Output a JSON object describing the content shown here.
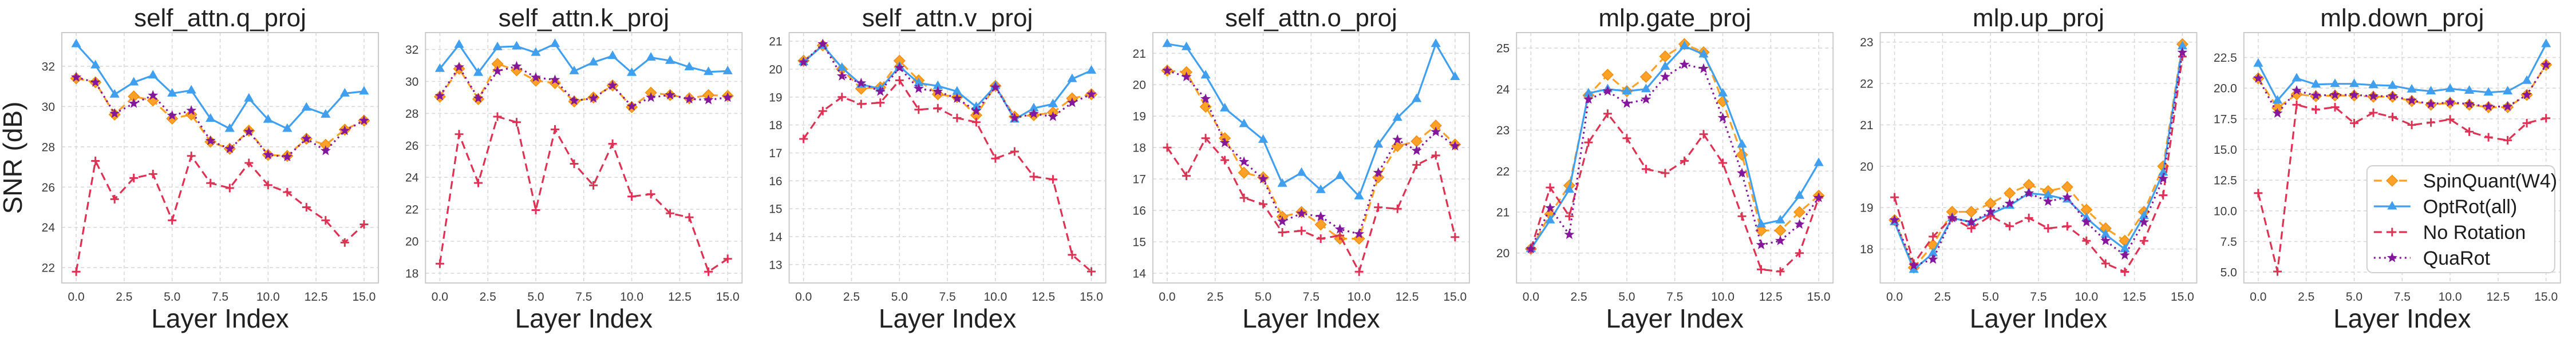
{
  "figure": {
    "ylabel": "SNR (dB)",
    "xlabel": "Layer Index",
    "x": [
      0,
      1,
      2,
      3,
      4,
      5,
      6,
      7,
      8,
      9,
      10,
      11,
      12,
      13,
      14,
      15
    ],
    "xlim": [
      -0.75,
      15.75
    ],
    "xticks": [
      0,
      2.5,
      5,
      7.5,
      10,
      12.5,
      15
    ],
    "xtick_labels": [
      "0.0",
      "2.5",
      "5.0",
      "7.5",
      "10.0",
      "12.5",
      "15.0"
    ],
    "grid": "dashed-both-axes",
    "legend_position": "lower-right-of-last-chart"
  },
  "series_meta": [
    {
      "name": "SpinQuant(W4)",
      "color": "#FFA126",
      "edge_color": "#EE8F0E",
      "line_style": "dashed",
      "marker": "diamond"
    },
    {
      "name": "OptRot(all)",
      "color": "#419FF0",
      "edge_color": "#2B8CE0",
      "line_style": "solid",
      "marker": "triangle-up"
    },
    {
      "name": "No Rotation",
      "color": "#DC3354",
      "edge_color": "#DC3354",
      "line_style": "dashed",
      "marker": "plus"
    },
    {
      "name": "QuaRot",
      "color": "#84189B",
      "edge_color": "#6E1184",
      "line_style": "dotted",
      "marker": "star"
    }
  ],
  "chart_data": [
    {
      "type": "line",
      "title": "self_attn.q_proj",
      "show_ylabel": true,
      "show_legend": false,
      "ylim": [
        21.24,
        33.67
      ],
      "yticks": [
        22,
        24,
        26,
        28,
        30,
        32
      ],
      "ytick_labels": [
        "22",
        "24",
        "26",
        "28",
        "30",
        "32"
      ],
      "series": [
        {
          "name": "SpinQuant(W4)",
          "values": [
            31.4,
            31.2,
            29.6,
            30.5,
            30.3,
            29.4,
            29.6,
            28.25,
            27.9,
            28.8,
            27.6,
            27.55,
            28.4,
            28.1,
            28.85,
            29.3
          ]
        },
        {
          "name": "OptRot(all)",
          "values": [
            33.1,
            32.05,
            30.6,
            31.2,
            31.55,
            30.65,
            30.8,
            29.4,
            28.9,
            30.4,
            29.35,
            28.9,
            29.95,
            29.6,
            30.65,
            30.75
          ]
        },
        {
          "name": "No Rotation",
          "values": [
            21.8,
            27.3,
            25.4,
            26.45,
            26.65,
            24.35,
            27.55,
            26.2,
            25.95,
            27.2,
            26.1,
            25.75,
            25.0,
            24.35,
            23.25,
            24.15
          ]
        },
        {
          "name": "QuaRot",
          "values": [
            31.45,
            31.2,
            29.65,
            30.15,
            30.55,
            29.55,
            29.8,
            28.3,
            27.9,
            28.75,
            27.6,
            27.5,
            28.4,
            27.8,
            28.8,
            29.3
          ]
        }
      ]
    },
    {
      "type": "line",
      "title": "self_attn.k_proj",
      "show_ylabel": false,
      "show_legend": false,
      "ylim": [
        17.39,
        33.06
      ],
      "yticks": [
        18,
        20,
        22,
        24,
        26,
        28,
        30,
        32
      ],
      "ytick_labels": [
        "18",
        "20",
        "22",
        "24",
        "26",
        "28",
        "30",
        "32"
      ],
      "series": [
        {
          "name": "SpinQuant(W4)",
          "values": [
            29.05,
            30.8,
            28.9,
            31.1,
            30.7,
            30.05,
            29.9,
            28.75,
            29.0,
            29.75,
            28.4,
            29.3,
            29.15,
            28.95,
            29.15,
            29.1
          ]
        },
        {
          "name": "OptRot(all)",
          "values": [
            30.8,
            32.3,
            30.55,
            32.15,
            32.2,
            31.8,
            32.35,
            30.65,
            31.2,
            31.6,
            30.55,
            31.5,
            31.3,
            30.9,
            30.6,
            30.65
          ]
        },
        {
          "name": "No Rotation",
          "values": [
            18.6,
            26.7,
            23.65,
            27.8,
            27.45,
            21.95,
            27.0,
            24.85,
            23.5,
            26.1,
            22.8,
            22.95,
            21.75,
            21.5,
            18.1,
            18.9
          ]
        },
        {
          "name": "QuaRot",
          "values": [
            29.1,
            30.9,
            28.95,
            30.65,
            30.95,
            30.25,
            30.1,
            28.8,
            28.95,
            29.75,
            28.45,
            29.0,
            29.15,
            28.9,
            28.85,
            29.0
          ]
        }
      ]
    },
    {
      "type": "line",
      "title": "self_attn.v_proj",
      "show_ylabel": false,
      "show_legend": false,
      "ylim": [
        12.34,
        21.31
      ],
      "yticks": [
        13,
        14,
        15,
        16,
        17,
        18,
        19,
        20,
        21
      ],
      "ytick_labels": [
        "13",
        "14",
        "15",
        "16",
        "17",
        "18",
        "19",
        "20",
        "21"
      ],
      "series": [
        {
          "name": "SpinQuant(W4)",
          "values": [
            20.3,
            20.85,
            20.0,
            19.3,
            19.35,
            20.3,
            19.6,
            19.1,
            19.0,
            18.35,
            19.4,
            18.3,
            18.35,
            18.45,
            18.95,
            19.1
          ]
        },
        {
          "name": "OptRot(all)",
          "values": [
            20.25,
            20.85,
            20.05,
            19.45,
            19.3,
            20.1,
            19.5,
            19.4,
            19.2,
            18.65,
            19.4,
            18.2,
            18.6,
            18.75,
            19.65,
            19.95
          ]
        },
        {
          "name": "No Rotation",
          "values": [
            17.5,
            18.5,
            19.0,
            18.75,
            18.8,
            19.6,
            18.55,
            18.6,
            18.25,
            18.1,
            16.8,
            17.05,
            16.15,
            16.05,
            13.35,
            12.75
          ]
        },
        {
          "name": "QuaRot",
          "values": [
            20.25,
            20.9,
            19.75,
            19.5,
            19.2,
            20.05,
            19.3,
            19.2,
            18.95,
            18.5,
            19.35,
            18.25,
            18.4,
            18.3,
            18.8,
            19.1
          ]
        }
      ]
    },
    {
      "type": "line",
      "title": "self_attn.o_proj",
      "show_ylabel": false,
      "show_legend": false,
      "ylim": [
        13.69,
        21.66
      ],
      "yticks": [
        14,
        15,
        16,
        17,
        18,
        19,
        20,
        21
      ],
      "ytick_labels": [
        "14",
        "15",
        "16",
        "17",
        "18",
        "19",
        "20",
        "21"
      ],
      "series": [
        {
          "name": "SpinQuant(W4)",
          "values": [
            20.45,
            20.4,
            19.3,
            18.3,
            17.2,
            17.05,
            15.8,
            15.95,
            15.55,
            15.1,
            15.1,
            17.05,
            18.05,
            18.2,
            18.7,
            18.1
          ]
        },
        {
          "name": "OptRot(all)",
          "values": [
            21.3,
            21.2,
            20.3,
            19.25,
            18.75,
            18.25,
            16.85,
            17.2,
            16.65,
            17.1,
            16.45,
            18.1,
            18.95,
            19.55,
            21.3,
            20.25
          ]
        },
        {
          "name": "No Rotation",
          "values": [
            18.0,
            17.1,
            18.3,
            17.6,
            16.4,
            16.2,
            15.3,
            15.35,
            15.1,
            15.2,
            14.05,
            16.1,
            16.05,
            17.45,
            17.75,
            15.15
          ]
        },
        {
          "name": "QuaRot",
          "values": [
            20.45,
            20.25,
            19.55,
            18.15,
            17.55,
            17.0,
            15.65,
            15.9,
            15.8,
            15.4,
            15.25,
            17.2,
            18.25,
            17.9,
            18.5,
            18.05
          ]
        }
      ]
    },
    {
      "type": "line",
      "title": "mlp.gate_proj",
      "show_ylabel": false,
      "show_legend": false,
      "ylim": [
        19.27,
        25.38
      ],
      "yticks": [
        20,
        21,
        22,
        23,
        24,
        25
      ],
      "ytick_labels": [
        "20",
        "21",
        "22",
        "23",
        "24",
        "25"
      ],
      "series": [
        {
          "name": "SpinQuant(W4)",
          "values": [
            20.1,
            20.95,
            21.65,
            23.85,
            24.35,
            23.95,
            24.3,
            24.8,
            25.1,
            24.9,
            23.7,
            22.4,
            20.55,
            20.55,
            21.0,
            21.4
          ]
        },
        {
          "name": "OptRot(all)",
          "values": [
            20.1,
            20.8,
            21.55,
            23.9,
            24.0,
            23.95,
            24.0,
            24.55,
            25.05,
            24.85,
            23.9,
            22.65,
            20.7,
            20.8,
            21.4,
            22.2
          ]
        },
        {
          "name": "No Rotation",
          "values": [
            20.1,
            21.6,
            20.9,
            22.7,
            23.4,
            22.8,
            22.05,
            21.95,
            22.25,
            22.9,
            22.2,
            20.9,
            19.6,
            19.55,
            20.0,
            21.35
          ]
        },
        {
          "name": "QuaRot",
          "values": [
            20.1,
            21.1,
            20.45,
            23.75,
            23.95,
            23.65,
            23.75,
            24.3,
            24.6,
            24.5,
            23.3,
            21.95,
            20.2,
            20.3,
            20.7,
            21.35
          ]
        }
      ]
    },
    {
      "type": "line",
      "title": "mlp.up_proj",
      "show_ylabel": false,
      "show_legend": false,
      "ylim": [
        17.18,
        23.23
      ],
      "yticks": [
        18,
        19,
        20,
        21,
        22,
        23
      ],
      "ytick_labels": [
        "18",
        "19",
        "20",
        "21",
        "22",
        "23"
      ],
      "series": [
        {
          "name": "SpinQuant(W4)",
          "values": [
            18.7,
            17.55,
            18.1,
            18.9,
            18.9,
            19.1,
            19.35,
            19.55,
            19.4,
            19.5,
            18.95,
            18.5,
            18.2,
            18.9,
            20.0,
            22.95
          ]
        },
        {
          "name": "OptRot(all)",
          "values": [
            18.65,
            17.5,
            17.9,
            18.75,
            18.65,
            18.85,
            19.05,
            19.35,
            19.3,
            19.2,
            18.75,
            18.35,
            18.0,
            18.8,
            19.85,
            22.9
          ]
        },
        {
          "name": "No Rotation",
          "values": [
            19.25,
            17.65,
            18.3,
            18.75,
            18.5,
            18.8,
            18.55,
            18.75,
            18.5,
            18.55,
            18.2,
            17.65,
            17.45,
            18.2,
            19.3,
            22.65
          ]
        },
        {
          "name": "QuaRot",
          "values": [
            18.7,
            17.6,
            17.75,
            18.75,
            18.65,
            18.9,
            19.1,
            19.35,
            19.15,
            19.25,
            18.65,
            18.2,
            17.85,
            18.65,
            19.7,
            22.75
          ]
        }
      ]
    },
    {
      "type": "line",
      "title": "mlp.down_proj",
      "show_ylabel": false,
      "show_legend": true,
      "ylim": [
        4.12,
        24.53
      ],
      "yticks": [
        5,
        7.5,
        10,
        12.5,
        15,
        17.5,
        20,
        22.5
      ],
      "ytick_labels": [
        "5.0",
        "7.5",
        "10.0",
        "12.5",
        "15.0",
        "17.5",
        "20.0",
        "22.5"
      ],
      "series": [
        {
          "name": "SpinQuant(W4)",
          "values": [
            20.8,
            18.4,
            19.5,
            19.35,
            19.4,
            19.4,
            19.3,
            19.3,
            18.95,
            18.65,
            18.8,
            18.65,
            18.45,
            18.45,
            19.45,
            21.9
          ]
        },
        {
          "name": "OptRot(all)",
          "values": [
            22.0,
            19.0,
            20.8,
            20.3,
            20.35,
            20.35,
            20.25,
            20.2,
            19.9,
            19.75,
            19.95,
            19.8,
            19.65,
            19.75,
            20.6,
            23.6
          ]
        },
        {
          "name": "No Rotation",
          "values": [
            11.45,
            5.05,
            18.65,
            18.25,
            18.45,
            17.15,
            18.0,
            17.65,
            17.0,
            17.2,
            17.45,
            16.45,
            16.0,
            15.75,
            17.15,
            17.55
          ]
        },
        {
          "name": "QuaRot",
          "values": [
            20.8,
            17.95,
            19.8,
            19.4,
            19.45,
            19.45,
            19.35,
            19.35,
            19.0,
            18.7,
            18.85,
            18.7,
            18.5,
            18.5,
            19.45,
            21.9
          ]
        }
      ]
    }
  ],
  "colors": {
    "grid": "#D8D8D8",
    "spine": "#CBCBCB",
    "background": "#FFFFFF",
    "text": "#212121",
    "tick_text": "#3C3C3C"
  }
}
